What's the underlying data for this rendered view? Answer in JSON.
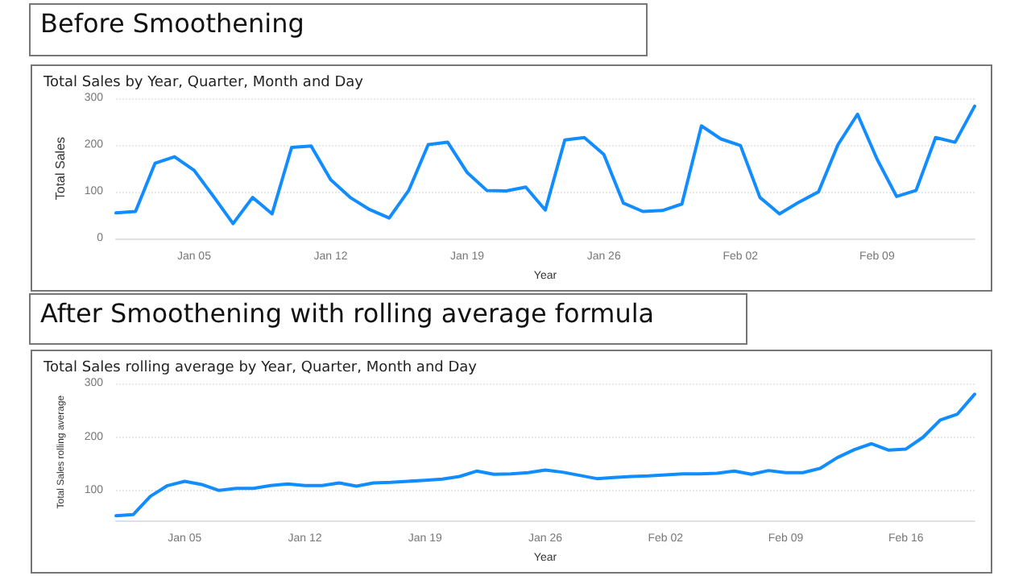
{
  "chart_data": [
    {
      "type": "line",
      "title": "Before Smoothening",
      "subtitle": "Total Sales by Year, Quarter, Month and Day",
      "xlabel": "Year",
      "ylabel": "Total Sales",
      "x": [
        "--01-01",
        "--01-02",
        "--01-03",
        "--01-04",
        "--01-05",
        "--01-06",
        "--01-07",
        "--01-08",
        "--01-09",
        "--01-10",
        "--01-11",
        "--01-12",
        "--01-13",
        "--01-14",
        "--01-15",
        "--01-16",
        "--01-17",
        "--01-18",
        "--01-19",
        "--01-20",
        "--01-21",
        "--01-22",
        "--01-23",
        "--01-24",
        "--01-25",
        "--01-26",
        "--01-27",
        "--01-28",
        "--01-29",
        "--01-30",
        "--01-31",
        "--02-01",
        "--02-02",
        "--02-03",
        "--02-04",
        "--02-05",
        "--02-06",
        "--02-07",
        "--02-08",
        "--02-09",
        "--02-10",
        "--02-11",
        "--02-12",
        "--02-13",
        "--02-14"
      ],
      "series": [
        {
          "color": "#118dff",
          "values": [
            55,
            58,
            161,
            175,
            146,
            90,
            32,
            88,
            53,
            195,
            198,
            126,
            88,
            62,
            44,
            103,
            201,
            206,
            141,
            103,
            102,
            110,
            61,
            211,
            216,
            180,
            76,
            58,
            60,
            74,
            241,
            213,
            199,
            88,
            53,
            78,
            100,
            201,
            266,
            170,
            90,
            103,
            216,
            206,
            283
          ]
        }
      ],
      "xlim": [
        "--01-01",
        "--02-14"
      ],
      "xticks": [
        {
          "value": "--01-05",
          "label": "Jan 05"
        },
        {
          "value": "--01-12",
          "label": "Jan 12"
        },
        {
          "value": "--01-19",
          "label": "Jan 19"
        },
        {
          "value": "--01-26",
          "label": "Jan 26"
        },
        {
          "value": "--02-02",
          "label": "Feb 02"
        },
        {
          "value": "--02-09",
          "label": "Feb 09"
        }
      ],
      "ylim": [
        0,
        300
      ],
      "yticks": [
        0,
        100,
        200,
        300
      ],
      "grid": "y",
      "line_style": "solid",
      "marker": "none"
    },
    {
      "type": "line",
      "title": "After Smoothening with rolling average formula",
      "subtitle": "Total Sales rolling average by Year, Quarter, Month and Day",
      "xlabel": "Year",
      "ylabel": "Total Sales rolling average",
      "x": [
        "--01-01",
        "--01-02",
        "--01-03",
        "--01-04",
        "--01-05",
        "--01-06",
        "--01-07",
        "--01-08",
        "--01-09",
        "--01-10",
        "--01-11",
        "--01-12",
        "--01-13",
        "--01-14",
        "--01-15",
        "--01-16",
        "--01-17",
        "--01-18",
        "--01-19",
        "--01-20",
        "--01-21",
        "--01-22",
        "--01-23",
        "--01-24",
        "--01-25",
        "--01-26",
        "--01-27",
        "--01-28",
        "--01-29",
        "--01-30",
        "--01-31",
        "--02-01",
        "--02-02",
        "--02-03",
        "--02-04",
        "--02-05",
        "--02-06",
        "--02-07",
        "--02-08",
        "--02-09",
        "--02-10",
        "--02-11",
        "--02-12",
        "--02-13",
        "--02-14",
        "--02-15",
        "--02-16",
        "--02-17",
        "--02-18",
        "--02-19",
        "--02-20"
      ],
      "series": [
        {
          "color": "#118dff",
          "values": [
            54,
            56,
            90,
            110,
            118,
            112,
            101,
            105,
            105,
            110,
            113,
            110,
            110,
            115,
            109,
            115,
            116,
            118,
            120,
            122,
            127,
            137,
            131,
            132,
            134,
            139,
            135,
            129,
            123,
            125,
            127,
            128,
            130,
            132,
            132,
            133,
            137,
            131,
            138,
            134,
            134,
            142,
            162,
            177,
            188,
            176,
            178,
            200,
            232,
            243,
            280
          ]
        }
      ],
      "xlim": [
        "--01-01",
        "--02-20"
      ],
      "xticks": [
        {
          "value": "--01-05",
          "label": "Jan 05"
        },
        {
          "value": "--01-12",
          "label": "Jan 12"
        },
        {
          "value": "--01-19",
          "label": "Jan 19"
        },
        {
          "value": "--01-26",
          "label": "Jan 26"
        },
        {
          "value": "--02-02",
          "label": "Feb 02"
        },
        {
          "value": "--02-09",
          "label": "Feb 09"
        },
        {
          "value": "--02-16",
          "label": "Feb 16"
        }
      ],
      "ylim": [
        45,
        300
      ],
      "yticks": [
        100,
        200,
        300
      ],
      "grid": "y",
      "line_style": "solid",
      "marker": "none"
    }
  ]
}
